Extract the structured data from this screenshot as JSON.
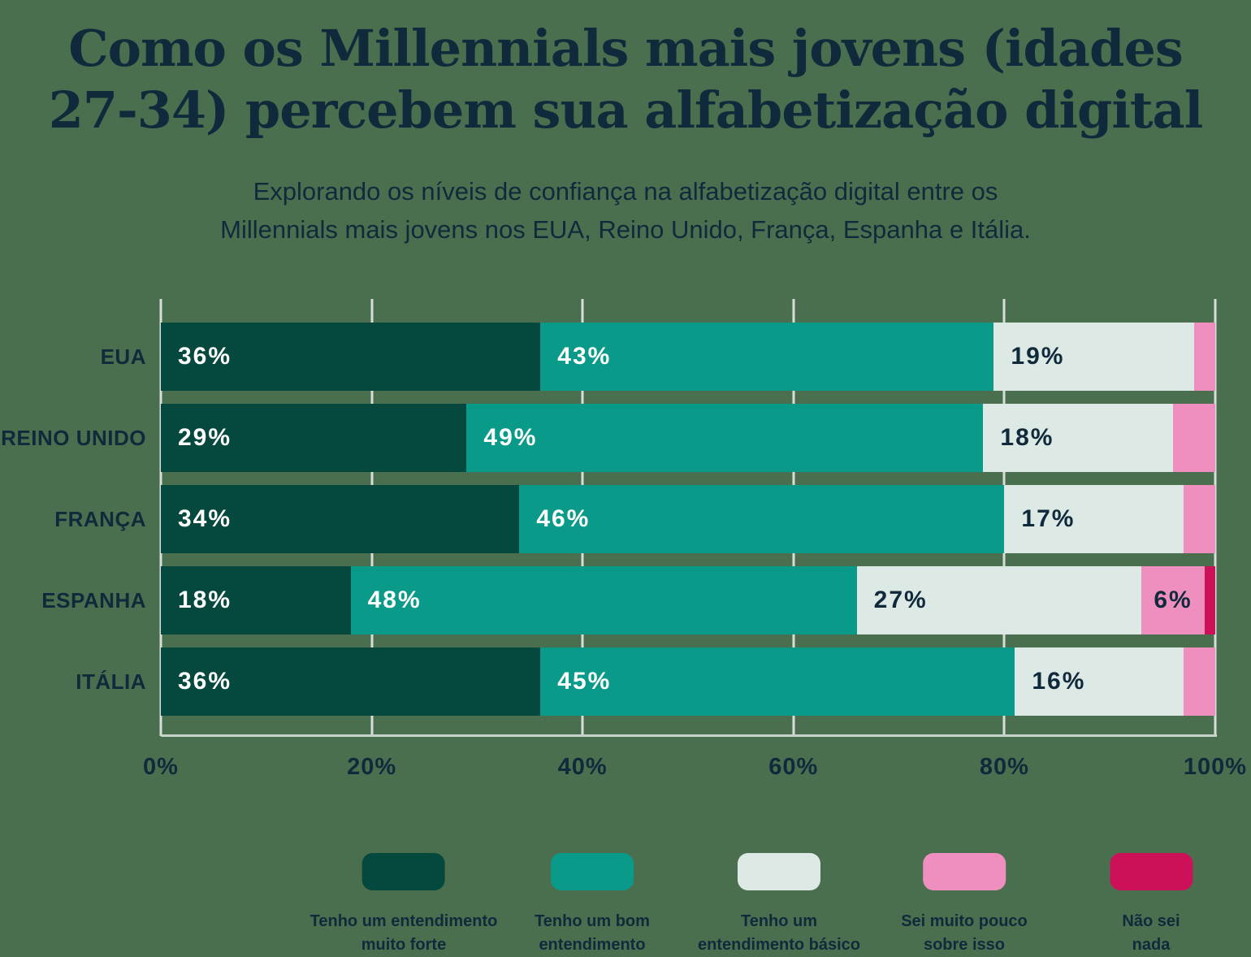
{
  "page": {
    "background_color": "#4A6F4F",
    "text_color": "#102A3C",
    "grid_color": "#D5DFD7",
    "axis_line_color": "#C8D3CA"
  },
  "header": {
    "title": "Como os Millennials mais jovens (idades\n27-34) percebem sua alfabetização digital",
    "subtitle": "Explorando os níveis de confiança na alfabetização digital entre os\nMillennials mais jovens nos EUA, Reino Unido, França, Espanha e Itália."
  },
  "chart_data": {
    "type": "bar",
    "orientation": "horizontal",
    "stacked": true,
    "unit": "%",
    "categories": [
      "EUA",
      "REINO UNIDO",
      "FRANÇA",
      "ESPANHA",
      "ITÁLIA"
    ],
    "series": [
      {
        "name": "Tenho um entendimento muito forte",
        "legend_label": "Tenho um entendimento\nmuito forte",
        "color": "#05493E",
        "label_color": "#FFFFFF",
        "values": [
          36,
          29,
          34,
          18,
          36
        ]
      },
      {
        "name": "Tenho um bom entendimento",
        "legend_label": "Tenho um bom\nentendimento",
        "color": "#099A8A",
        "label_color": "#FFFFFF",
        "values": [
          43,
          49,
          46,
          48,
          45
        ]
      },
      {
        "name": "Tenho um entendimento básico",
        "legend_label": "Tenho um\nentendimento básico",
        "color": "#DCE9E5",
        "label_color": "#102A3C",
        "values": [
          19,
          18,
          17,
          27,
          16
        ]
      },
      {
        "name": "Sei muito pouco sobre isso",
        "legend_label": "Sei muito pouco\nsobre isso",
        "color": "#EE8FC0",
        "label_color": "#102A3C",
        "values": [
          2,
          4,
          3,
          6,
          3
        ]
      },
      {
        "name": "Não sei nada sobre isso",
        "legend_label": "Não sei nada\nsobre isso",
        "color": "#CC1159",
        "label_color": "#102A3C",
        "values": [
          0,
          0,
          0,
          1,
          0
        ]
      }
    ],
    "x_ticks": [
      "0%",
      "20%",
      "40%",
      "60%",
      "80%",
      "100%"
    ],
    "xlim": [
      0,
      100
    ],
    "grid": true,
    "value_label_format": "{v}%",
    "value_label_min": 6,
    "legend_position": "bottom"
  }
}
